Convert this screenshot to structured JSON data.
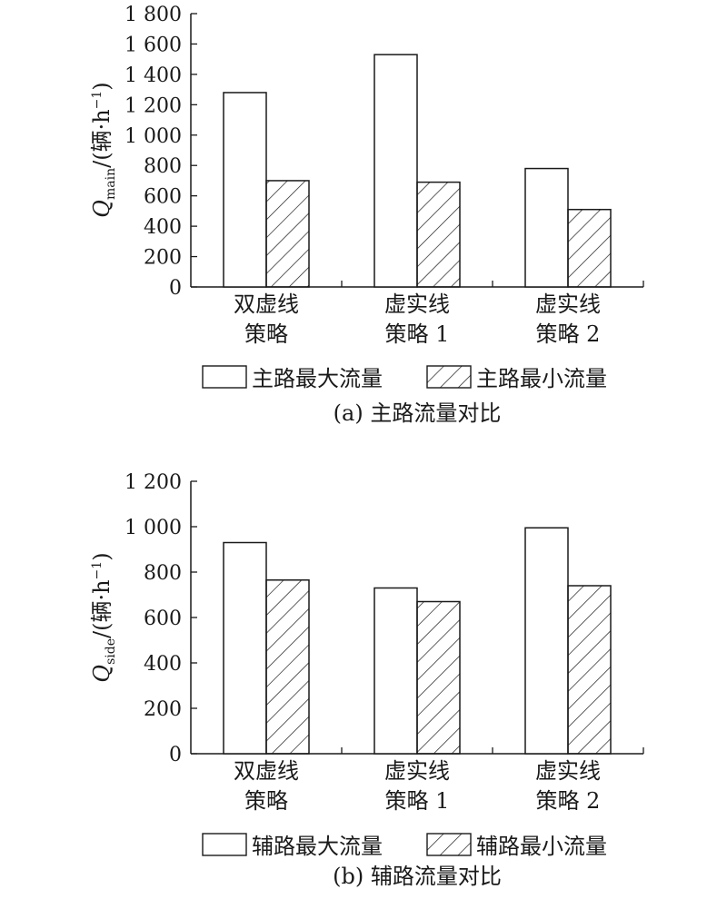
{
  "chart_data": [
    {
      "type": "bar",
      "ylabel_symbol": "Q",
      "ylabel_sub": "main",
      "ylabel_unit_pre": "/(辆·h",
      "ylabel_unit_sup": "−1",
      "ylabel_unit_post": ")",
      "categories": [
        [
          "双虚线",
          "策略"
        ],
        [
          "虚实线",
          "策略 1"
        ],
        [
          "虚实线",
          "策略 2"
        ]
      ],
      "series": [
        {
          "name": "主路最大流量",
          "values": [
            1280,
            1530,
            780
          ],
          "pattern": "none"
        },
        {
          "name": "主路最小流量",
          "values": [
            700,
            690,
            510
          ],
          "pattern": "hatch"
        }
      ],
      "yticks": [
        0,
        200,
        400,
        600,
        800,
        1000,
        1200,
        1400,
        1600,
        1800
      ],
      "ytick_labels": [
        "0",
        "200",
        "400",
        "600",
        "800",
        "1 000",
        "1 200",
        "1 400",
        "1 600",
        "1 800"
      ],
      "ylim": [
        0,
        1800
      ],
      "legend_position": "bottom",
      "caption": "(a) 主路流量对比"
    },
    {
      "type": "bar",
      "ylabel_symbol": "Q",
      "ylabel_sub": "side",
      "ylabel_unit_pre": "/(辆·h",
      "ylabel_unit_sup": "−1",
      "ylabel_unit_post": ")",
      "categories": [
        [
          "双虚线",
          "策略"
        ],
        [
          "虚实线",
          "策略 1"
        ],
        [
          "虚实线",
          "策略 2"
        ]
      ],
      "series": [
        {
          "name": "辅路最大流量",
          "values": [
            930,
            730,
            995
          ],
          "pattern": "none"
        },
        {
          "name": "辅路最小流量",
          "values": [
            765,
            670,
            740
          ],
          "pattern": "hatch"
        }
      ],
      "yticks": [
        0,
        200,
        400,
        600,
        800,
        1000,
        1200
      ],
      "ytick_labels": [
        "0",
        "200",
        "400",
        "600",
        "800",
        "1 000",
        "1 200"
      ],
      "ylim": [
        0,
        1200
      ],
      "legend_position": "bottom",
      "caption": "(b) 辅路流量对比"
    }
  ]
}
